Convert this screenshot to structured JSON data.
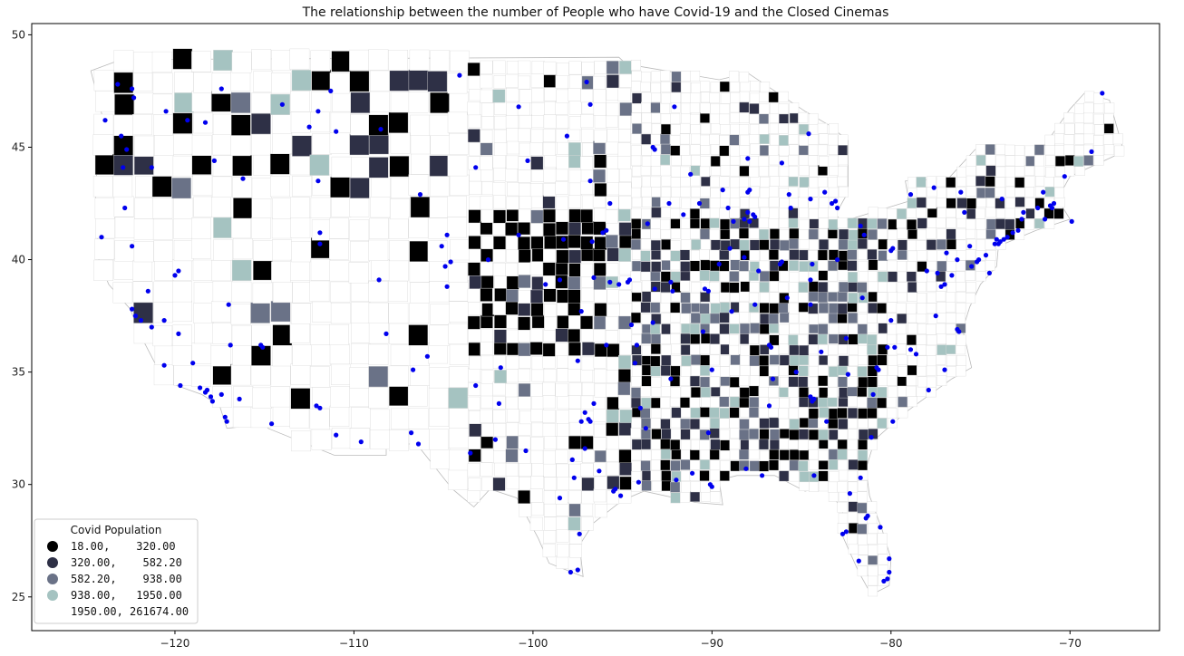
{
  "chart_data": {
    "type": "choropleth-scatter",
    "title": "The relationship between the number of People who have Covid-19 and the Closed Cinemas",
    "xlabel": "",
    "ylabel": "",
    "xlim": [
      -128,
      -65
    ],
    "ylim": [
      23.5,
      50.5
    ],
    "xticks": [
      -120,
      -110,
      -100,
      -90,
      -80,
      -70
    ],
    "yticks": [
      25,
      30,
      35,
      40,
      45,
      50
    ],
    "legend": {
      "title": "Covid Population",
      "placement": "bottom-left",
      "entries": [
        {
          "label": "18.00,    320.00",
          "color": "#000000"
        },
        {
          "label": "320.00,    582.20",
          "color": "#2e3046"
        },
        {
          "label": "582.20,    938.00",
          "color": "#6a7287"
        },
        {
          "label": "938.00,   1950.00",
          "color": "#a5c3c1"
        },
        {
          "label": "1950.00, 261674.00",
          "color": "#ffffff"
        }
      ]
    },
    "cinema_points_color": "#0000ee",
    "cinema_points": [
      [
        -123.2,
        47.8
      ],
      [
        -122.4,
        47.6
      ],
      [
        -122.3,
        47.2
      ],
      [
        -123.0,
        45.5
      ],
      [
        -122.7,
        44.9
      ],
      [
        -122.9,
        44.1
      ],
      [
        -122.8,
        42.3
      ],
      [
        -124.1,
        41.0
      ],
      [
        -122.4,
        40.6
      ],
      [
        -121.5,
        38.6
      ],
      [
        -122.4,
        37.8
      ],
      [
        -122.2,
        37.5
      ],
      [
        -121.9,
        37.3
      ],
      [
        -121.3,
        37.0
      ],
      [
        -120.6,
        37.3
      ],
      [
        -119.8,
        36.7
      ],
      [
        -119.0,
        35.4
      ],
      [
        -118.3,
        34.1
      ],
      [
        -118.0,
        33.9
      ],
      [
        -117.9,
        33.7
      ],
      [
        -117.4,
        34.0
      ],
      [
        -117.2,
        33.0
      ],
      [
        -117.1,
        32.8
      ],
      [
        -116.4,
        33.8
      ],
      [
        -118.2,
        34.2
      ],
      [
        -118.6,
        34.3
      ],
      [
        -119.7,
        34.4
      ],
      [
        -120.6,
        35.3
      ],
      [
        -115.1,
        36.1
      ],
      [
        -115.2,
        36.2
      ],
      [
        -112.1,
        33.5
      ],
      [
        -111.9,
        33.4
      ],
      [
        -111.0,
        32.2
      ],
      [
        -111.9,
        40.7
      ],
      [
        -111.9,
        41.2
      ],
      [
        -112.0,
        43.5
      ],
      [
        -116.2,
        43.6
      ],
      [
        -117.4,
        47.6
      ],
      [
        -111.0,
        45.7
      ],
      [
        -108.5,
        45.8
      ],
      [
        -106.7,
        35.1
      ],
      [
        -106.4,
        31.8
      ],
      [
        -104.9,
        39.7
      ],
      [
        -104.8,
        38.8
      ],
      [
        -105.1,
        40.6
      ],
      [
        -104.6,
        39.9
      ],
      [
        -101.8,
        35.2
      ],
      [
        -101.9,
        33.6
      ],
      [
        -97.3,
        32.8
      ],
      [
        -96.8,
        32.8
      ],
      [
        -96.9,
        32.9
      ],
      [
        -97.7,
        30.3
      ],
      [
        -98.5,
        29.4
      ],
      [
        -95.4,
        29.8
      ],
      [
        -95.5,
        29.7
      ],
      [
        -95.1,
        29.5
      ],
      [
        -94.1,
        30.1
      ],
      [
        -97.4,
        27.8
      ],
      [
        -97.5,
        26.2
      ],
      [
        -97.9,
        26.1
      ],
      [
        -93.7,
        32.5
      ],
      [
        -92.0,
        30.2
      ],
      [
        -91.1,
        30.5
      ],
      [
        -90.1,
        30.0
      ],
      [
        -90.0,
        29.9
      ],
      [
        -88.1,
        30.7
      ],
      [
        -86.8,
        33.5
      ],
      [
        -86.6,
        34.7
      ],
      [
        -84.4,
        33.7
      ],
      [
        -84.3,
        33.8
      ],
      [
        -84.5,
        33.9
      ],
      [
        -83.6,
        32.8
      ],
      [
        -81.1,
        32.1
      ],
      [
        -81.7,
        30.3
      ],
      [
        -82.3,
        29.6
      ],
      [
        -81.4,
        28.5
      ],
      [
        -81.3,
        28.6
      ],
      [
        -82.5,
        27.9
      ],
      [
        -82.7,
        27.8
      ],
      [
        -81.8,
        26.6
      ],
      [
        -80.1,
        26.1
      ],
      [
        -80.2,
        25.8
      ],
      [
        -80.4,
        25.7
      ],
      [
        -80.1,
        26.7
      ],
      [
        -80.6,
        28.1
      ],
      [
        -87.2,
        30.4
      ],
      [
        -84.3,
        30.4
      ],
      [
        -90.2,
        32.3
      ],
      [
        -90.0,
        35.1
      ],
      [
        -86.8,
        36.2
      ],
      [
        -86.7,
        36.1
      ],
      [
        -85.3,
        35.0
      ],
      [
        -83.9,
        35.9
      ],
      [
        -82.5,
        36.5
      ],
      [
        -84.5,
        38.0
      ],
      [
        -85.8,
        38.3
      ],
      [
        -84.5,
        39.1
      ],
      [
        -83.0,
        40.0
      ],
      [
        -81.7,
        41.5
      ],
      [
        -81.5,
        41.1
      ],
      [
        -80.0,
        40.4
      ],
      [
        -79.9,
        40.5
      ],
      [
        -84.4,
        39.8
      ],
      [
        -86.2,
        39.8
      ],
      [
        -86.1,
        39.9
      ],
      [
        -87.6,
        41.9
      ],
      [
        -87.7,
        42.0
      ],
      [
        -88.0,
        42.1
      ],
      [
        -88.2,
        41.8
      ],
      [
        -87.9,
        41.7
      ],
      [
        -89.6,
        39.8
      ],
      [
        -90.2,
        38.6
      ],
      [
        -90.4,
        38.7
      ],
      [
        -94.6,
        39.1
      ],
      [
        -94.7,
        39.0
      ],
      [
        -95.9,
        41.3
      ],
      [
        -96.7,
        40.8
      ],
      [
        -93.6,
        41.6
      ],
      [
        -91.6,
        42.0
      ],
      [
        -93.3,
        45.0
      ],
      [
        -93.2,
        44.9
      ],
      [
        -92.1,
        46.8
      ],
      [
        -89.4,
        43.1
      ],
      [
        -88.0,
        43.0
      ],
      [
        -87.9,
        43.1
      ],
      [
        -88.0,
        44.5
      ],
      [
        -85.7,
        42.9
      ],
      [
        -83.0,
        42.3
      ],
      [
        -83.3,
        42.5
      ],
      [
        -83.1,
        42.6
      ],
      [
        -84.5,
        42.7
      ],
      [
        -83.7,
        43.0
      ],
      [
        -86.1,
        44.3
      ],
      [
        -84.6,
        45.6
      ],
      [
        -85.6,
        42.3
      ],
      [
        -78.9,
        42.9
      ],
      [
        -77.6,
        43.2
      ],
      [
        -76.1,
        43.0
      ],
      [
        -73.8,
        42.7
      ],
      [
        -75.9,
        42.1
      ],
      [
        -74.0,
        40.7
      ],
      [
        -73.9,
        40.8
      ],
      [
        -74.2,
        40.7
      ],
      [
        -74.1,
        40.9
      ],
      [
        -73.7,
        40.9
      ],
      [
        -73.5,
        41.0
      ],
      [
        -73.2,
        41.2
      ],
      [
        -72.9,
        41.3
      ],
      [
        -72.7,
        41.8
      ],
      [
        -72.6,
        42.1
      ],
      [
        -71.8,
        42.3
      ],
      [
        -71.1,
        42.4
      ],
      [
        -71.0,
        42.3
      ],
      [
        -71.4,
        41.8
      ],
      [
        -70.9,
        42.5
      ],
      [
        -71.5,
        43.0
      ],
      [
        -70.3,
        43.7
      ],
      [
        -68.8,
        44.8
      ],
      [
        -68.2,
        47.4
      ],
      [
        -69.9,
        41.7
      ],
      [
        -75.2,
        39.9
      ],
      [
        -75.1,
        40.0
      ],
      [
        -75.5,
        39.7
      ],
      [
        -75.6,
        40.6
      ],
      [
        -76.3,
        40.0
      ],
      [
        -76.9,
        40.3
      ],
      [
        -76.6,
        39.3
      ],
      [
        -77.0,
        38.9
      ],
      [
        -77.2,
        38.8
      ],
      [
        -77.4,
        39.4
      ],
      [
        -77.5,
        37.5
      ],
      [
        -76.3,
        36.9
      ],
      [
        -76.2,
        36.8
      ],
      [
        -78.6,
        35.8
      ],
      [
        -78.9,
        36.0
      ],
      [
        -80.2,
        36.1
      ],
      [
        -79.8,
        36.1
      ],
      [
        -80.8,
        35.2
      ],
      [
        -80.7,
        35.1
      ],
      [
        -81.0,
        34.0
      ],
      [
        -82.4,
        34.9
      ],
      [
        -79.9,
        32.8
      ],
      [
        -80.0,
        37.3
      ],
      [
        -81.6,
        38.3
      ],
      [
        -77.0,
        35.1
      ],
      [
        -77.9,
        34.2
      ],
      [
        -78.0,
        39.5
      ],
      [
        -74.5,
        39.4
      ],
      [
        -74.7,
        40.2
      ],
      [
        -97.5,
        35.5
      ],
      [
        -97.3,
        37.7
      ],
      [
        -95.9,
        36.2
      ],
      [
        -95.7,
        39.0
      ],
      [
        -92.3,
        34.7
      ],
      [
        -94.2,
        36.2
      ],
      [
        -93.3,
        37.2
      ],
      [
        -91.2,
        43.8
      ],
      [
        -96.8,
        43.5
      ],
      [
        -100.8,
        46.8
      ],
      [
        -96.8,
        46.9
      ],
      [
        -103.2,
        44.1
      ],
      [
        -106.3,
        42.9
      ],
      [
        -108.6,
        39.1
      ],
      [
        -104.8,
        41.1
      ],
      [
        -109.6,
        31.9
      ],
      [
        -114.6,
        32.7
      ],
      [
        -116.9,
        36.2
      ],
      [
        -117.0,
        38.0
      ],
      [
        -119.8,
        39.5
      ],
      [
        -120.0,
        39.3
      ],
      [
        -117.8,
        44.4
      ],
      [
        -121.3,
        44.1
      ],
      [
        -123.9,
        46.2
      ],
      [
        -120.5,
        46.6
      ],
      [
        -119.3,
        46.2
      ],
      [
        -118.3,
        46.1
      ],
      [
        -114.0,
        46.9
      ],
      [
        -112.0,
        46.6
      ],
      [
        -111.3,
        47.5
      ],
      [
        -112.5,
        45.9
      ],
      [
        -104.1,
        48.2
      ],
      [
        -97.0,
        47.9
      ],
      [
        -98.1,
        45.5
      ],
      [
        -100.3,
        44.4
      ],
      [
        -98.3,
        40.9
      ],
      [
        -100.8,
        41.1
      ],
      [
        -102.5,
        40.0
      ],
      [
        -99.3,
        38.9
      ],
      [
        -98.5,
        39.1
      ],
      [
        -96.6,
        39.2
      ],
      [
        -95.2,
        38.9
      ],
      [
        -96.1,
        41.2
      ],
      [
        -95.7,
        42.5
      ],
      [
        -92.4,
        42.5
      ],
      [
        -90.7,
        42.5
      ],
      [
        -89.1,
        42.3
      ],
      [
        -88.8,
        41.7
      ],
      [
        -89.0,
        40.5
      ],
      [
        -88.2,
        40.1
      ],
      [
        -87.4,
        39.5
      ],
      [
        -87.6,
        38.0
      ],
      [
        -88.9,
        37.7
      ],
      [
        -90.5,
        36.8
      ],
      [
        -92.2,
        38.6
      ],
      [
        -92.3,
        39.0
      ],
      [
        -93.2,
        38.7
      ],
      [
        -94.5,
        37.1
      ],
      [
        -94.3,
        35.4
      ],
      [
        -94.0,
        33.4
      ],
      [
        -96.6,
        33.6
      ],
      [
        -97.1,
        33.2
      ],
      [
        -96.3,
        30.6
      ],
      [
        -97.1,
        31.6
      ],
      [
        -97.8,
        31.1
      ],
      [
        -100.4,
        31.5
      ],
      [
        -102.1,
        32.0
      ],
      [
        -103.5,
        31.4
      ],
      [
        -106.8,
        32.3
      ],
      [
        -108.2,
        36.7
      ],
      [
        -105.9,
        35.7
      ],
      [
        -103.2,
        34.4
      ]
    ]
  }
}
